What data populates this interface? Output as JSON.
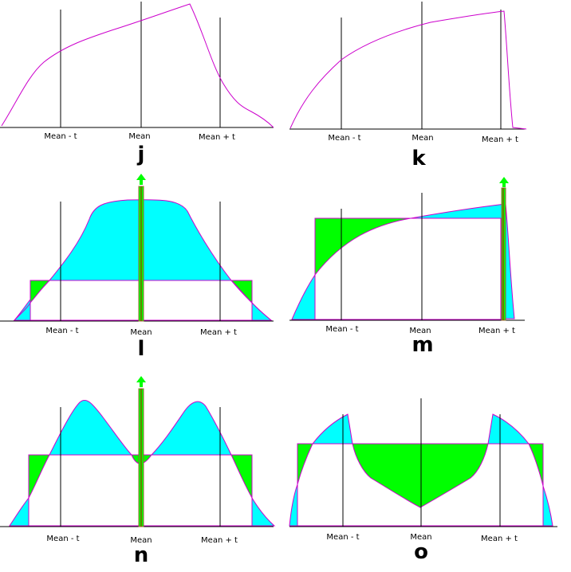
{
  "colors": {
    "curve": "#cc00cc",
    "fill_cyan": "#00ffff",
    "fill_green": "#00ff00",
    "spike_outline": "#996633",
    "axis": "#000000"
  },
  "panels": {
    "j": {
      "label": "j",
      "tick_labels": {
        "left": "Mean - t",
        "mid": "Mean",
        "right": "Mean + t"
      }
    },
    "k": {
      "label": "k",
      "tick_labels": {
        "left": "Mean - t",
        "mid": "Mean",
        "right": "Mean + t"
      }
    },
    "l": {
      "label": "l",
      "tick_labels": {
        "left": "Mean - t",
        "mid": "Mean",
        "right": "Mean + t"
      }
    },
    "m": {
      "label": "m",
      "tick_labels": {
        "left": "Mean - t",
        "mid": "Mean",
        "right": "Mean + t"
      }
    },
    "n": {
      "label": "n",
      "tick_labels": {
        "left": "Mean - t",
        "mid": "Mean",
        "right": "Mean + t"
      }
    },
    "o": {
      "label": "o",
      "tick_labels": {
        "left": "Mean - t",
        "mid": "Mean",
        "right": "Mean + t"
      }
    }
  }
}
